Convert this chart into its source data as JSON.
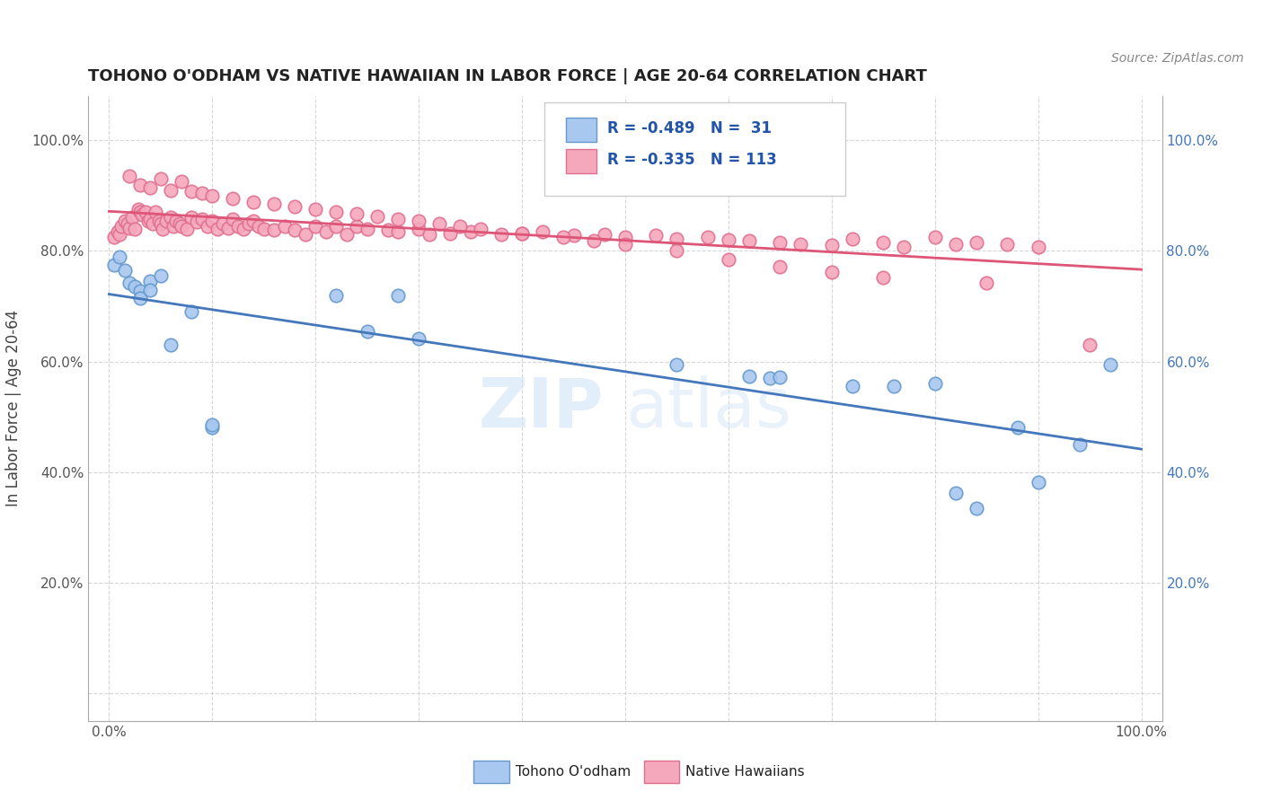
{
  "title": "TOHONO O'ODHAM VS NATIVE HAWAIIAN IN LABOR FORCE | AGE 20-64 CORRELATION CHART",
  "source": "Source: ZipAtlas.com",
  "ylabel": "In Labor Force | Age 20-64",
  "xlim": [
    -0.02,
    1.02
  ],
  "ylim": [
    -0.05,
    1.08
  ],
  "blue_color": "#A8C8F0",
  "pink_color": "#F5A8BC",
  "blue_edge_color": "#6699CC",
  "pink_edge_color": "#E07090",
  "blue_line_color": "#4477BB",
  "pink_line_color": "#DD5577",
  "legend_r_blue": "-0.489",
  "legend_n_blue": "31",
  "legend_r_pink": "-0.335",
  "legend_n_pink": "113",
  "legend_label_blue": "Tohono O'odham",
  "legend_label_pink": "Native Hawaiians",
  "watermark_zip": "ZIP",
  "watermark_atlas": "atlas",
  "blue_x": [
    0.005,
    0.01,
    0.015,
    0.02,
    0.025,
    0.03,
    0.03,
    0.04,
    0.04,
    0.05,
    0.06,
    0.08,
    0.1,
    0.22,
    0.25,
    0.28,
    0.3,
    0.55,
    0.62,
    0.64,
    0.65,
    0.72,
    0.76,
    0.8,
    0.82,
    0.84,
    0.88,
    0.9,
    0.94,
    0.97,
    0.1
  ],
  "blue_y": [
    0.775,
    0.79,
    0.765,
    0.742,
    0.735,
    0.728,
    0.715,
    0.745,
    0.73,
    0.755,
    0.63,
    0.69,
    0.481,
    0.72,
    0.655,
    0.72,
    0.641,
    0.595,
    0.573,
    0.57,
    0.572,
    0.555,
    0.555,
    0.56,
    0.362,
    0.335,
    0.48,
    0.382,
    0.45,
    0.595,
    0.485
  ],
  "pink_x": [
    0.005,
    0.008,
    0.01,
    0.012,
    0.015,
    0.018,
    0.02,
    0.022,
    0.025,
    0.028,
    0.03,
    0.032,
    0.035,
    0.038,
    0.04,
    0.042,
    0.045,
    0.048,
    0.05,
    0.052,
    0.055,
    0.06,
    0.062,
    0.065,
    0.068,
    0.07,
    0.075,
    0.08,
    0.085,
    0.09,
    0.095,
    0.1,
    0.105,
    0.11,
    0.115,
    0.12,
    0.125,
    0.13,
    0.135,
    0.14,
    0.145,
    0.15,
    0.16,
    0.17,
    0.18,
    0.19,
    0.2,
    0.21,
    0.22,
    0.23,
    0.24,
    0.25,
    0.27,
    0.28,
    0.3,
    0.31,
    0.33,
    0.35,
    0.38,
    0.4,
    0.42,
    0.45,
    0.48,
    0.5,
    0.53,
    0.55,
    0.58,
    0.6,
    0.62,
    0.65,
    0.67,
    0.7,
    0.72,
    0.75,
    0.77,
    0.8,
    0.82,
    0.84,
    0.87,
    0.9,
    0.02,
    0.03,
    0.04,
    0.05,
    0.06,
    0.07,
    0.08,
    0.09,
    0.1,
    0.12,
    0.14,
    0.16,
    0.18,
    0.2,
    0.22,
    0.24,
    0.26,
    0.28,
    0.3,
    0.32,
    0.34,
    0.36,
    0.4,
    0.44,
    0.47,
    0.5,
    0.55,
    0.6,
    0.65,
    0.7,
    0.75,
    0.85,
    0.95
  ],
  "pink_y": [
    0.825,
    0.835,
    0.83,
    0.845,
    0.855,
    0.85,
    0.842,
    0.86,
    0.84,
    0.875,
    0.87,
    0.865,
    0.87,
    0.855,
    0.858,
    0.85,
    0.87,
    0.855,
    0.85,
    0.84,
    0.855,
    0.86,
    0.845,
    0.855,
    0.85,
    0.845,
    0.84,
    0.86,
    0.852,
    0.858,
    0.845,
    0.855,
    0.84,
    0.85,
    0.842,
    0.858,
    0.845,
    0.84,
    0.85,
    0.855,
    0.845,
    0.84,
    0.838,
    0.845,
    0.838,
    0.83,
    0.845,
    0.835,
    0.845,
    0.83,
    0.845,
    0.84,
    0.838,
    0.835,
    0.84,
    0.83,
    0.832,
    0.835,
    0.83,
    0.832,
    0.835,
    0.828,
    0.83,
    0.825,
    0.828,
    0.822,
    0.825,
    0.82,
    0.818,
    0.815,
    0.812,
    0.81,
    0.822,
    0.815,
    0.808,
    0.825,
    0.812,
    0.815,
    0.812,
    0.808,
    0.935,
    0.92,
    0.915,
    0.93,
    0.91,
    0.925,
    0.908,
    0.905,
    0.9,
    0.895,
    0.888,
    0.885,
    0.88,
    0.875,
    0.87,
    0.868,
    0.862,
    0.858,
    0.855,
    0.85,
    0.845,
    0.84,
    0.832,
    0.825,
    0.818,
    0.812,
    0.8,
    0.785,
    0.772,
    0.762,
    0.752,
    0.742,
    0.63
  ]
}
